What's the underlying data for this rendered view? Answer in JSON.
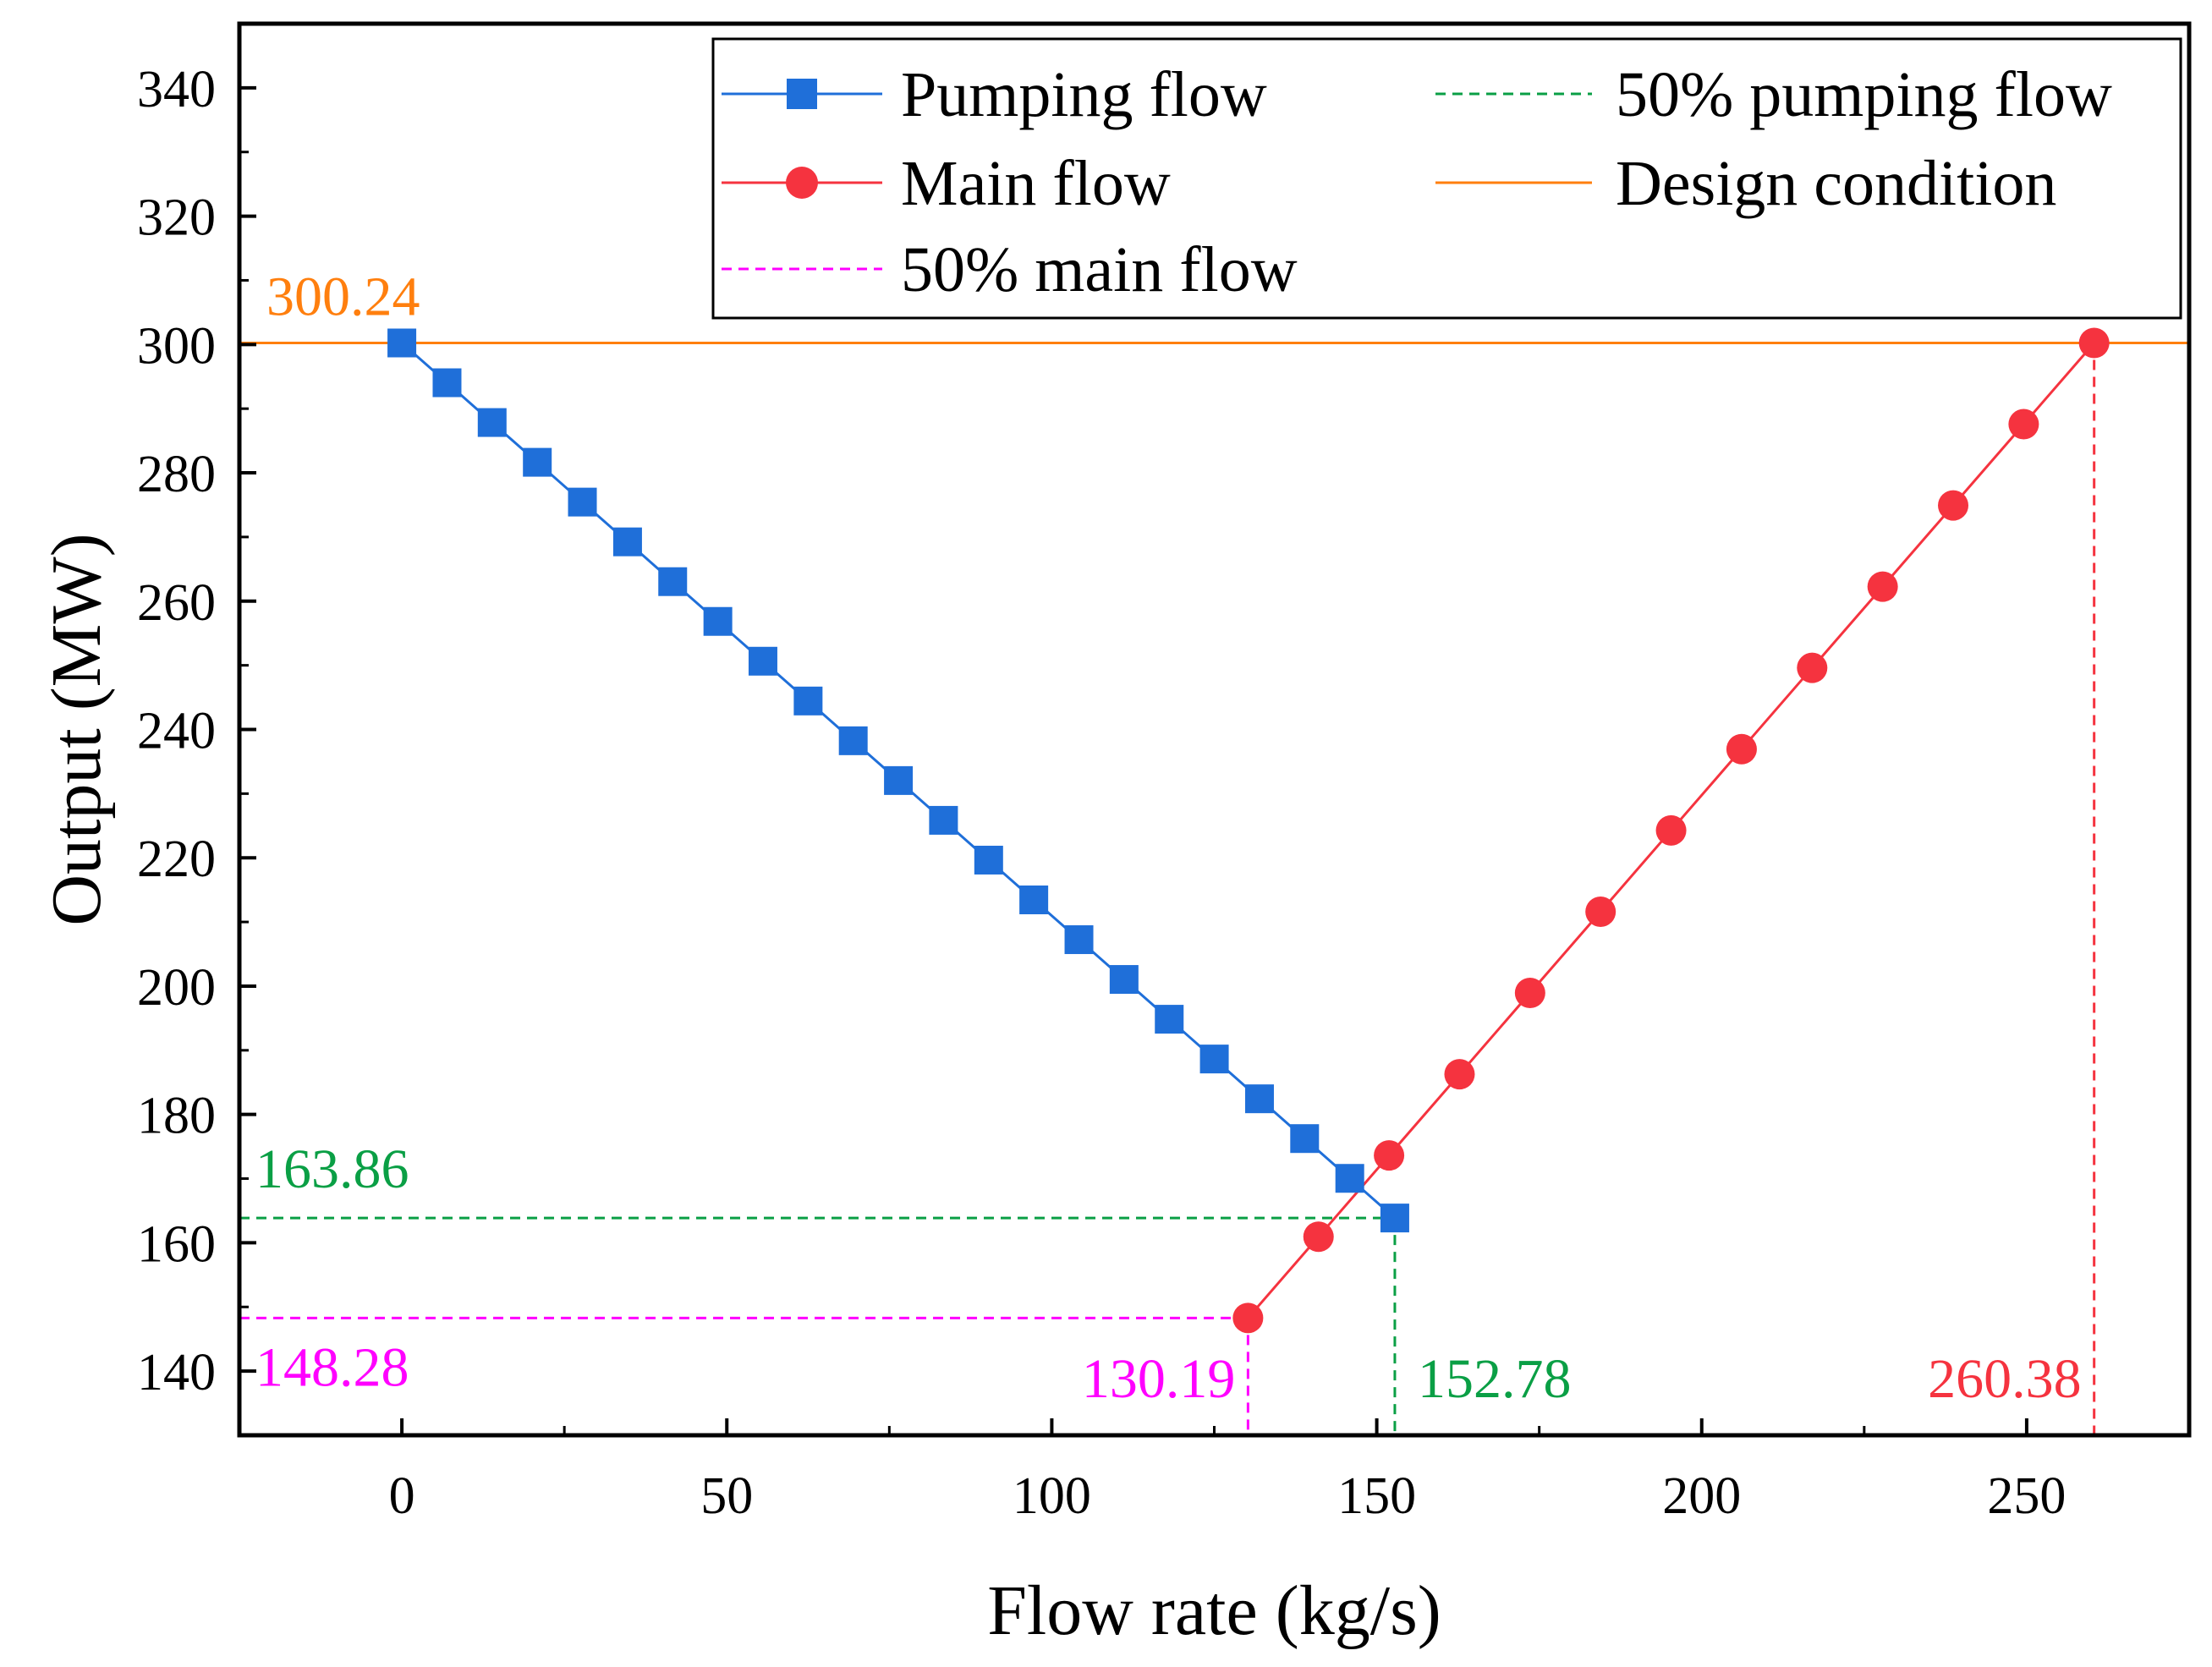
{
  "chart_data": {
    "type": "line",
    "xlabel": "Flow rate (kg/s)",
    "ylabel": "Output (MW)",
    "xlim": [
      -25,
      275
    ],
    "ylim": [
      130,
      350
    ],
    "x_ticks": [
      0,
      50,
      100,
      150,
      200,
      250
    ],
    "y_ticks": [
      140,
      160,
      180,
      200,
      220,
      240,
      260,
      280,
      300,
      320,
      340
    ],
    "grid": false,
    "legend_position": "top-right",
    "colors": {
      "pumping": "#1f6fd9",
      "main": "#f5333f",
      "design": "#ff7f0e",
      "pumping50": "#0a9f45",
      "main50": "#ff00ff"
    },
    "series": [
      {
        "name": "Pumping flow",
        "marker": "square",
        "x": [
          0,
          6.95,
          13.89,
          20.84,
          27.78,
          34.73,
          41.67,
          48.62,
          55.56,
          62.51,
          69.45,
          76.4,
          83.34,
          90.29,
          97.23,
          104.18,
          111.12,
          118.07,
          125.01,
          131.96,
          138.9,
          145.85,
          152.78
        ],
        "y": [
          300.24,
          294.04,
          287.84,
          281.64,
          275.44,
          269.24,
          263.04,
          256.84,
          250.64,
          244.44,
          238.24,
          232.04,
          225.84,
          219.64,
          213.44,
          207.24,
          201.04,
          194.84,
          188.64,
          182.44,
          176.24,
          170.04,
          163.86
        ]
      },
      {
        "name": "Main flow",
        "marker": "circle",
        "x": [
          130.19,
          141.04,
          151.89,
          162.74,
          173.59,
          184.44,
          195.29,
          206.14,
          216.99,
          227.84,
          238.69,
          249.54,
          260.38
        ],
        "y": [
          148.28,
          160.94,
          173.61,
          186.27,
          198.94,
          211.6,
          224.27,
          236.93,
          249.6,
          262.26,
          274.92,
          287.58,
          300.24
        ]
      }
    ],
    "reference_lines": [
      {
        "name": "50% pumping flow",
        "style": "dashed",
        "x": 152.78,
        "y": 163.86
      },
      {
        "name": "Design condition",
        "style": "solid",
        "y": 300.24
      },
      {
        "name": "50% main flow",
        "style": "dashed",
        "x": 130.19,
        "y": 148.28
      },
      {
        "name": "main-flow-design-drop",
        "style": "dashed",
        "x": 260.38,
        "y": 300.24
      }
    ],
    "legend": [
      "Pumping flow",
      "50% pumping flow",
      "Main flow",
      "Design condition",
      "50% main flow"
    ],
    "annotations": {
      "design_output": "300.24",
      "pumping_50_output": "163.86",
      "main_50_output": "148.28",
      "main_50_flow": "130.19",
      "pumping_50_flow": "152.78",
      "main_design_flow": "260.38"
    }
  }
}
